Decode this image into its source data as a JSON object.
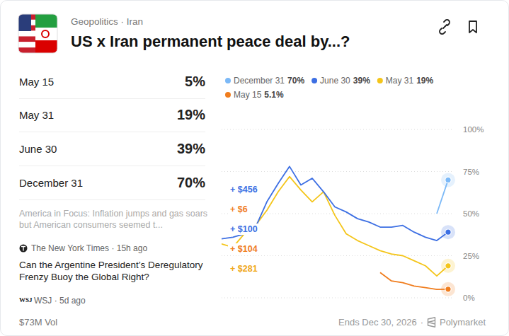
{
  "header": {
    "breadcrumb": "Geopolitics · Iran",
    "title": "US x Iran permanent peace deal by...?"
  },
  "outcomes": [
    {
      "label": "May 15",
      "percent": "5%"
    },
    {
      "label": "May 31",
      "percent": "19%"
    },
    {
      "label": "June 30",
      "percent": "39%"
    },
    {
      "label": "December 31",
      "percent": "70%"
    }
  ],
  "news": [
    {
      "headline": "America in Focus: Inflation jumps and gas soars but American consumers seemed t..."
    },
    {
      "byline": "The New York Times · 15h ago",
      "headline": "Can the Argentine President’s Deregulatory Frenzy Buoy the Global Right?"
    },
    {
      "source": "WSJ",
      "byline": "WSJ · 5d ago"
    }
  ],
  "footer": {
    "volume": "$73M Vol",
    "ends": "Ends Dec 30, 2026",
    "separator": "·",
    "brand": "Polymarket"
  },
  "chart_data": {
    "type": "line",
    "x": [
      0,
      2,
      4,
      6,
      8,
      10,
      12,
      14,
      16,
      18,
      20,
      22,
      24,
      26,
      28,
      30,
      32,
      34,
      36,
      38,
      40
    ],
    "xlim": [
      0,
      40
    ],
    "ylim": [
      0,
      100
    ],
    "yticks": [
      {
        "value": 0,
        "label": "0%"
      },
      {
        "value": 25,
        "label": "25%"
      },
      {
        "value": 50,
        "label": "50%"
      },
      {
        "value": 75,
        "label": "75%"
      },
      {
        "value": 100,
        "label": "100%"
      }
    ],
    "grid": true,
    "tick_labels": "y",
    "legend": "top",
    "series": [
      {
        "name": "December 31",
        "legend_label": "70%",
        "color": "#7cb9f7",
        "marker": "circle",
        "values": [
          null,
          null,
          null,
          null,
          null,
          null,
          null,
          null,
          null,
          null,
          null,
          null,
          null,
          null,
          null,
          null,
          null,
          null,
          null,
          50,
          70
        ]
      },
      {
        "name": "June 30",
        "legend_label": "39%",
        "color": "#3d6fe3",
        "marker": "circle",
        "values": [
          35,
          36,
          38,
          42,
          57,
          68,
          78,
          67,
          71,
          63,
          54,
          51,
          47,
          45,
          42,
          42,
          43,
          39,
          36,
          34,
          39
        ]
      },
      {
        "name": "May 31",
        "legend_label": "19%",
        "color": "#f4c51a",
        "marker": "circle",
        "values": [
          32,
          30,
          38,
          43,
          52,
          63,
          72,
          64,
          57,
          63,
          49,
          38,
          34,
          31,
          28,
          26,
          25,
          22,
          19,
          13,
          19
        ]
      },
      {
        "name": "May 15",
        "legend_label": "5.1%",
        "color": "#f07d1e",
        "marker": "circle",
        "values": [
          null,
          null,
          null,
          null,
          null,
          null,
          null,
          null,
          null,
          null,
          null,
          null,
          null,
          null,
          15,
          10,
          9,
          7,
          6,
          5,
          5.1
        ]
      }
    ],
    "annotations": [
      {
        "text": "+ $456",
        "color": "#3d6fe3"
      },
      {
        "text": "+ $6",
        "color": "#f07d1e"
      },
      {
        "text": "+ $100",
        "color": "#3d6fe3"
      },
      {
        "text": "+ $104",
        "color": "#f07d1e"
      },
      {
        "text": "+ $281",
        "color": "#f0a81a"
      }
    ]
  }
}
